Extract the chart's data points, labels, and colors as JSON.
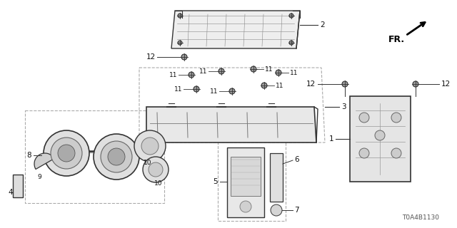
{
  "bg_color": "#ffffff",
  "part_number": "T0A4B1130",
  "line_color": "#333333",
  "label_color": "#111111",
  "label_fs": 7.5,
  "small_label_fs": 6.5
}
